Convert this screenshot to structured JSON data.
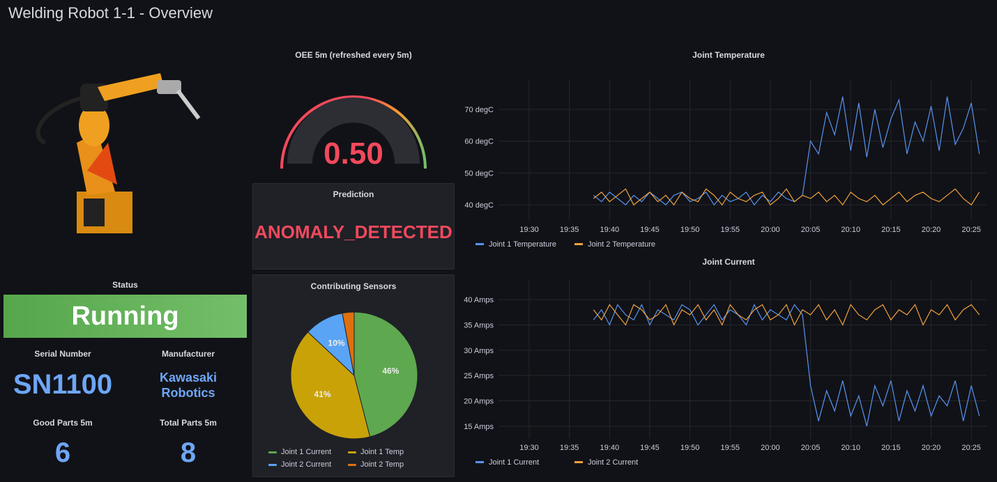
{
  "header": {
    "title": "Welding Robot 1-1 - Overview"
  },
  "status": {
    "title": "Status",
    "value": "Running",
    "color": "#73bf69"
  },
  "serial": {
    "label": "Serial Number",
    "value": "SN1100"
  },
  "manufacturer": {
    "label": "Manufacturer",
    "line1": "Kawasaki",
    "line2": "Robotics"
  },
  "good_parts": {
    "label": "Good Parts 5m",
    "value": "6"
  },
  "total_parts": {
    "label": "Total Parts 5m",
    "value": "8"
  },
  "oee": {
    "title": "OEE 5m (refreshed every 5m)",
    "value": "0.50",
    "fraction": 0.5,
    "color": "#f2495c"
  },
  "prediction": {
    "title": "Prediction",
    "value": "ANOMALY_DETECTED",
    "color": "#f2495c"
  },
  "chart_data": [
    {
      "type": "pie",
      "title": "Contributing Sensors",
      "labels": [
        "Joint 1 Current",
        "Joint 1 Temp",
        "Joint 2 Current",
        "Joint 2 Temp"
      ],
      "values": [
        46,
        41,
        10,
        3
      ],
      "value_labels": [
        "46%",
        "41%",
        "10%",
        ""
      ],
      "colors": [
        "#5ea84f",
        "#c9a208",
        "#5aa4f5",
        "#e0700f"
      ]
    },
    {
      "type": "line",
      "title": "Joint Temperature",
      "unit": "degC",
      "yticks": [
        40,
        50,
        60,
        70
      ],
      "ylim": [
        35,
        77
      ],
      "xticks": [
        "19:30",
        "19:35",
        "19:40",
        "19:45",
        "19:50",
        "19:55",
        "20:00",
        "20:05",
        "20:10",
        "20:15",
        "20:20",
        "20:25"
      ],
      "x_start": "19:38",
      "x_step_min": 1,
      "series": [
        {
          "name": "Joint 1 Temperature",
          "color": "#5794f2",
          "values": [
            43,
            41,
            44,
            42,
            40,
            43,
            41,
            44,
            42,
            40,
            43,
            44,
            41,
            42,
            44,
            40,
            43,
            41,
            42,
            44,
            40,
            43,
            41,
            44,
            42,
            41,
            43,
            60,
            56,
            69,
            62,
            74,
            57,
            72,
            55,
            70,
            58,
            67,
            73,
            56,
            66,
            60,
            71,
            57,
            74,
            59,
            64,
            72,
            56
          ]
        },
        {
          "name": "Joint 2 Temperature",
          "color": "#f2a33c",
          "values": [
            42,
            44,
            41,
            43,
            45,
            40,
            42,
            44,
            41,
            43,
            40,
            44,
            42,
            41,
            45,
            43,
            40,
            44,
            42,
            41,
            43,
            44,
            40,
            42,
            45,
            41,
            43,
            42,
            44,
            41,
            43,
            40,
            44,
            42,
            41,
            43,
            40,
            42,
            44,
            41,
            43,
            44,
            42,
            41,
            43,
            45,
            42,
            40,
            44
          ]
        }
      ]
    },
    {
      "type": "line",
      "title": "Joint Current",
      "unit": "Amps",
      "yticks": [
        15,
        20,
        25,
        30,
        35,
        40
      ],
      "ylim": [
        12.5,
        42.5
      ],
      "xticks": [
        "19:30",
        "19:35",
        "19:40",
        "19:45",
        "19:50",
        "19:55",
        "20:00",
        "20:05",
        "20:10",
        "20:15",
        "20:20",
        "20:25"
      ],
      "x_start": "19:38",
      "x_step_min": 1,
      "series": [
        {
          "name": "Joint 1 Current",
          "color": "#5794f2",
          "values": [
            36,
            38,
            35,
            39,
            37,
            36,
            39,
            35,
            38,
            37,
            36,
            39,
            38,
            35,
            37,
            39,
            36,
            38,
            37,
            35,
            39,
            36,
            38,
            37,
            36,
            39,
            37,
            23,
            16,
            22,
            18,
            24,
            17,
            21,
            15,
            23,
            19,
            24,
            16,
            22,
            18,
            23,
            17,
            21,
            19,
            24,
            16,
            23,
            17
          ]
        },
        {
          "name": "Joint 2 Current",
          "color": "#f2a33c",
          "values": [
            38,
            36,
            39,
            37,
            35,
            39,
            38,
            36,
            37,
            39,
            35,
            38,
            37,
            39,
            36,
            38,
            35,
            39,
            37,
            36,
            38,
            39,
            36,
            37,
            39,
            35,
            38,
            37,
            39,
            36,
            38,
            35,
            39,
            37,
            36,
            38,
            39,
            36,
            38,
            37,
            39,
            35,
            38,
            37,
            39,
            36,
            38,
            39,
            37
          ]
        }
      ]
    }
  ]
}
